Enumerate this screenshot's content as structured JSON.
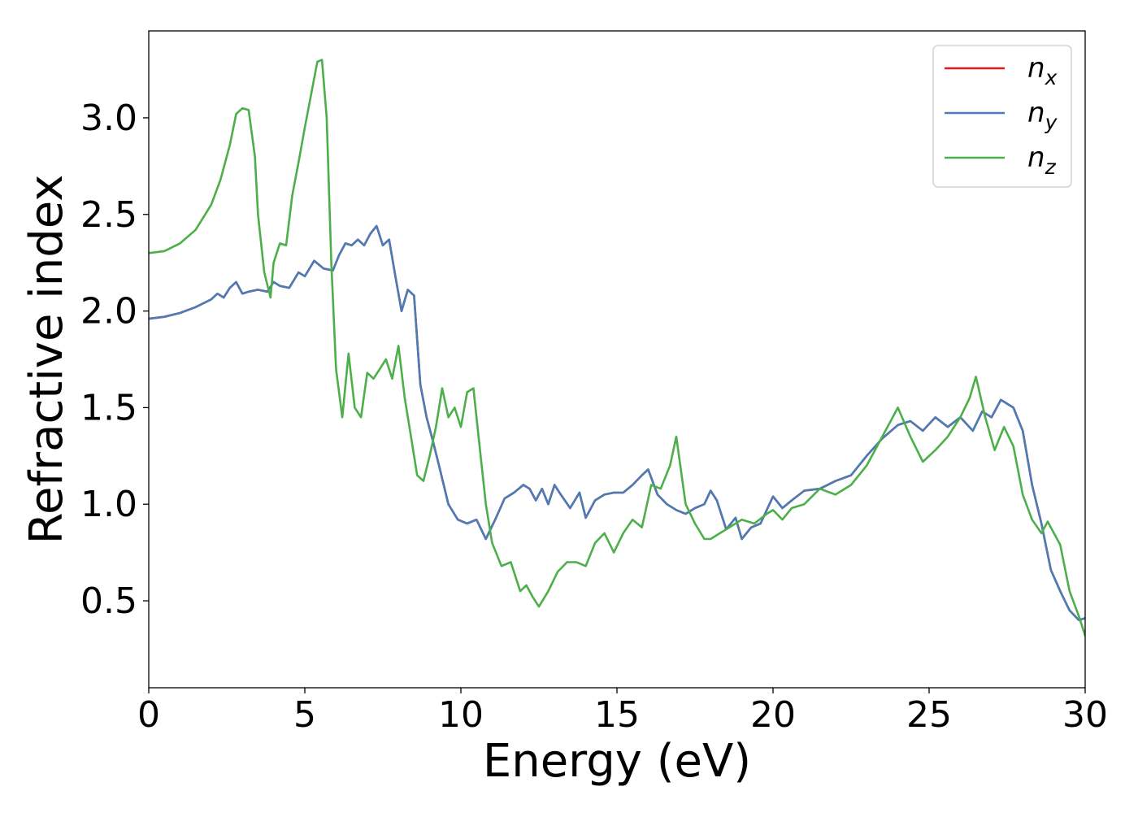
{
  "chart_data": {
    "type": "line",
    "title": "",
    "xlabel": "Energy (eV)",
    "ylabel": "Refractive index",
    "xlim": [
      0,
      30
    ],
    "ylim": [
      0.05,
      3.45
    ],
    "xticks": [
      0,
      5,
      10,
      15,
      20,
      25,
      30
    ],
    "xtick_labels": [
      "0",
      "5",
      "10",
      "15",
      "20",
      "25",
      "30"
    ],
    "yticks": [
      0.5,
      1.0,
      1.5,
      2.0,
      2.5,
      3.0
    ],
    "ytick_labels": [
      "0.5",
      "1.0",
      "1.5",
      "2.0",
      "2.5",
      "3.0"
    ],
    "grid": false,
    "legend_position": "top-right",
    "series": [
      {
        "name": "n_x",
        "label_base": "n",
        "label_sub": "x",
        "color": "#e41a1c",
        "x": [
          0.0,
          0.5,
          1.0,
          1.5,
          2.0,
          2.2,
          2.4,
          2.6,
          2.8,
          3.0,
          3.2,
          3.5,
          3.8,
          4.0,
          4.2,
          4.5,
          4.8,
          5.0,
          5.3,
          5.6,
          5.9,
          6.1,
          6.3,
          6.5,
          6.7,
          6.9,
          7.1,
          7.3,
          7.5,
          7.7,
          7.9,
          8.1,
          8.3,
          8.5,
          8.7,
          8.9,
          9.1,
          9.3,
          9.6,
          9.9,
          10.2,
          10.5,
          10.8,
          11.1,
          11.4,
          11.7,
          12.0,
          12.2,
          12.4,
          12.6,
          12.8,
          13.0,
          13.2,
          13.5,
          13.8,
          14.0,
          14.3,
          14.6,
          14.9,
          15.2,
          15.5,
          15.8,
          16.0,
          16.3,
          16.6,
          16.9,
          17.2,
          17.5,
          17.8,
          18.0,
          18.2,
          18.5,
          18.8,
          19.0,
          19.3,
          19.6,
          20.0,
          20.3,
          20.6,
          21.0,
          21.5,
          22.0,
          22.5,
          23.0,
          23.5,
          24.0,
          24.4,
          24.8,
          25.2,
          25.6,
          26.0,
          26.4,
          26.7,
          27.0,
          27.3,
          27.7,
          28.0,
          28.3,
          28.6,
          28.9,
          29.2,
          29.5,
          29.8,
          30.0
        ],
        "y": [
          1.96,
          1.97,
          1.99,
          2.02,
          2.06,
          2.09,
          2.07,
          2.12,
          2.15,
          2.09,
          2.1,
          2.11,
          2.1,
          2.15,
          2.13,
          2.12,
          2.2,
          2.18,
          2.26,
          2.22,
          2.21,
          2.29,
          2.35,
          2.34,
          2.37,
          2.34,
          2.4,
          2.44,
          2.34,
          2.37,
          2.18,
          2.0,
          2.11,
          2.08,
          1.62,
          1.45,
          1.33,
          1.2,
          1.0,
          0.92,
          0.9,
          0.92,
          0.82,
          0.92,
          1.03,
          1.06,
          1.1,
          1.08,
          1.02,
          1.08,
          1.0,
          1.1,
          1.05,
          0.98,
          1.06,
          0.93,
          1.02,
          1.05,
          1.06,
          1.06,
          1.1,
          1.15,
          1.18,
          1.05,
          1.0,
          0.97,
          0.95,
          0.98,
          1.0,
          1.07,
          1.02,
          0.87,
          0.93,
          0.82,
          0.88,
          0.9,
          1.04,
          0.98,
          1.02,
          1.07,
          1.08,
          1.12,
          1.15,
          1.25,
          1.34,
          1.41,
          1.43,
          1.38,
          1.45,
          1.4,
          1.45,
          1.38,
          1.48,
          1.45,
          1.54,
          1.5,
          1.38,
          1.1,
          0.9,
          0.66,
          0.55,
          0.45,
          0.4,
          0.41
        ]
      },
      {
        "name": "n_y",
        "label_base": "n",
        "label_sub": "y",
        "color": "#4a7cb5",
        "x": [
          0.0,
          0.5,
          1.0,
          1.5,
          2.0,
          2.2,
          2.4,
          2.6,
          2.8,
          3.0,
          3.2,
          3.5,
          3.8,
          4.0,
          4.2,
          4.5,
          4.8,
          5.0,
          5.3,
          5.6,
          5.9,
          6.1,
          6.3,
          6.5,
          6.7,
          6.9,
          7.1,
          7.3,
          7.5,
          7.7,
          7.9,
          8.1,
          8.3,
          8.5,
          8.7,
          8.9,
          9.1,
          9.3,
          9.6,
          9.9,
          10.2,
          10.5,
          10.8,
          11.1,
          11.4,
          11.7,
          12.0,
          12.2,
          12.4,
          12.6,
          12.8,
          13.0,
          13.2,
          13.5,
          13.8,
          14.0,
          14.3,
          14.6,
          14.9,
          15.2,
          15.5,
          15.8,
          16.0,
          16.3,
          16.6,
          16.9,
          17.2,
          17.5,
          17.8,
          18.0,
          18.2,
          18.5,
          18.8,
          19.0,
          19.3,
          19.6,
          20.0,
          20.3,
          20.6,
          21.0,
          21.5,
          22.0,
          22.5,
          23.0,
          23.5,
          24.0,
          24.4,
          24.8,
          25.2,
          25.6,
          26.0,
          26.4,
          26.7,
          27.0,
          27.3,
          27.7,
          28.0,
          28.3,
          28.6,
          28.9,
          29.2,
          29.5,
          29.8,
          30.0
        ],
        "y": [
          1.96,
          1.97,
          1.99,
          2.02,
          2.06,
          2.09,
          2.07,
          2.12,
          2.15,
          2.09,
          2.1,
          2.11,
          2.1,
          2.15,
          2.13,
          2.12,
          2.2,
          2.18,
          2.26,
          2.22,
          2.21,
          2.29,
          2.35,
          2.34,
          2.37,
          2.34,
          2.4,
          2.44,
          2.34,
          2.37,
          2.18,
          2.0,
          2.11,
          2.08,
          1.62,
          1.45,
          1.33,
          1.2,
          1.0,
          0.92,
          0.9,
          0.92,
          0.82,
          0.92,
          1.03,
          1.06,
          1.1,
          1.08,
          1.02,
          1.08,
          1.0,
          1.1,
          1.05,
          0.98,
          1.06,
          0.93,
          1.02,
          1.05,
          1.06,
          1.06,
          1.1,
          1.15,
          1.18,
          1.05,
          1.0,
          0.97,
          0.95,
          0.98,
          1.0,
          1.07,
          1.02,
          0.87,
          0.93,
          0.82,
          0.88,
          0.9,
          1.04,
          0.98,
          1.02,
          1.07,
          1.08,
          1.12,
          1.15,
          1.25,
          1.34,
          1.41,
          1.43,
          1.38,
          1.45,
          1.4,
          1.45,
          1.38,
          1.48,
          1.45,
          1.54,
          1.5,
          1.38,
          1.1,
          0.9,
          0.66,
          0.55,
          0.45,
          0.4,
          0.41
        ]
      },
      {
        "name": "n_z",
        "label_base": "n",
        "label_sub": "z",
        "color": "#4daf4a",
        "x": [
          0.0,
          0.5,
          1.0,
          1.5,
          2.0,
          2.3,
          2.6,
          2.8,
          3.0,
          3.2,
          3.4,
          3.5,
          3.7,
          3.9,
          4.0,
          4.2,
          4.4,
          4.6,
          4.8,
          5.0,
          5.2,
          5.4,
          5.55,
          5.7,
          5.85,
          6.0,
          6.2,
          6.4,
          6.6,
          6.8,
          7.0,
          7.2,
          7.4,
          7.6,
          7.8,
          8.0,
          8.2,
          8.4,
          8.6,
          8.8,
          9.0,
          9.2,
          9.4,
          9.6,
          9.8,
          10.0,
          10.2,
          10.4,
          10.6,
          10.8,
          11.0,
          11.3,
          11.6,
          11.9,
          12.1,
          12.3,
          12.5,
          12.8,
          13.1,
          13.4,
          13.7,
          14.0,
          14.3,
          14.6,
          14.9,
          15.2,
          15.5,
          15.8,
          16.1,
          16.4,
          16.7,
          16.9,
          17.2,
          17.5,
          17.8,
          18.0,
          18.3,
          18.6,
          19.0,
          19.4,
          19.8,
          20.0,
          20.3,
          20.6,
          21.0,
          21.5,
          22.0,
          22.5,
          23.0,
          23.5,
          24.0,
          24.4,
          24.8,
          25.2,
          25.6,
          26.0,
          26.3,
          26.5,
          26.8,
          27.1,
          27.4,
          27.7,
          28.0,
          28.3,
          28.6,
          28.8,
          29.0,
          29.2,
          29.5,
          29.8,
          30.0
        ],
        "y": [
          2.3,
          2.31,
          2.35,
          2.42,
          2.55,
          2.68,
          2.86,
          3.02,
          3.05,
          3.04,
          2.8,
          2.5,
          2.2,
          2.07,
          2.25,
          2.35,
          2.34,
          2.6,
          2.77,
          2.95,
          3.12,
          3.29,
          3.3,
          3.0,
          2.25,
          1.7,
          1.45,
          1.78,
          1.5,
          1.45,
          1.68,
          1.65,
          1.7,
          1.75,
          1.65,
          1.82,
          1.55,
          1.35,
          1.15,
          1.12,
          1.25,
          1.4,
          1.6,
          1.45,
          1.5,
          1.4,
          1.58,
          1.6,
          1.3,
          1.0,
          0.8,
          0.68,
          0.7,
          0.55,
          0.58,
          0.52,
          0.47,
          0.55,
          0.65,
          0.7,
          0.7,
          0.68,
          0.8,
          0.85,
          0.75,
          0.85,
          0.92,
          0.88,
          1.1,
          1.08,
          1.2,
          1.35,
          1.0,
          0.9,
          0.82,
          0.82,
          0.85,
          0.88,
          0.92,
          0.9,
          0.95,
          0.97,
          0.92,
          0.98,
          1.0,
          1.08,
          1.05,
          1.1,
          1.2,
          1.35,
          1.5,
          1.35,
          1.22,
          1.28,
          1.35,
          1.45,
          1.55,
          1.66,
          1.45,
          1.28,
          1.4,
          1.3,
          1.05,
          0.92,
          0.85,
          0.91,
          0.85,
          0.79,
          0.55,
          0.42,
          0.32
        ]
      }
    ]
  }
}
